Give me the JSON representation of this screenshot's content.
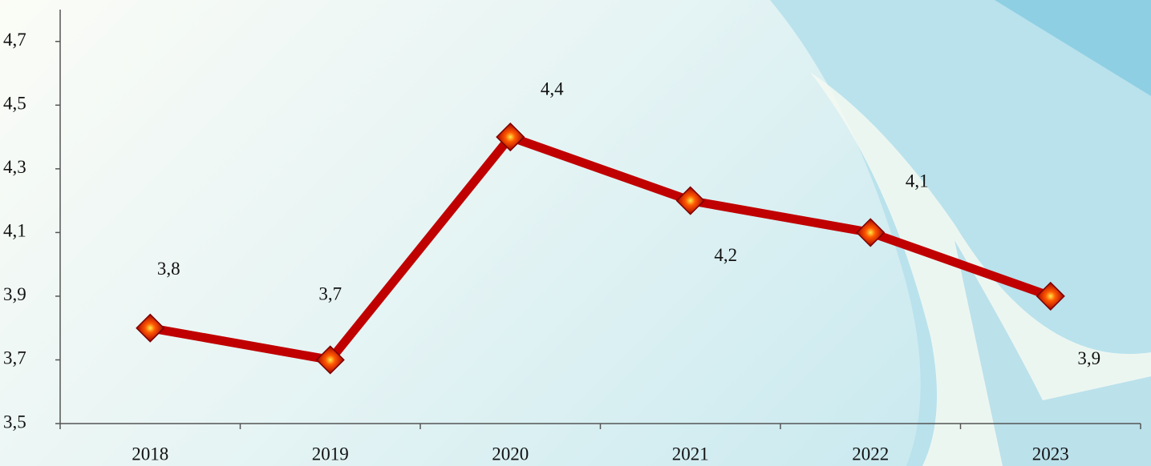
{
  "chart_data": {
    "type": "line",
    "categories": [
      "2018",
      "2019",
      "2020",
      "2021",
      "2022",
      "2023"
    ],
    "series": [
      {
        "color": "#c00000",
        "values": [
          3.8,
          3.7,
          4.4,
          4.2,
          4.1,
          3.9
        ],
        "value_labels": [
          "3,8",
          "3,7",
          "4,4",
          "4,2",
          "4,1",
          "3,9"
        ]
      }
    ],
    "ylim": [
      3.5,
      4.8
    ],
    "yticks": [
      {
        "value": 3.5,
        "label": "3,5"
      },
      {
        "value": 3.7,
        "label": "3,7"
      },
      {
        "value": 3.9,
        "label": "3,9"
      },
      {
        "value": 4.1,
        "label": "4,1"
      },
      {
        "value": 4.3,
        "label": "4,3"
      },
      {
        "value": 4.5,
        "label": "4,5"
      },
      {
        "value": 4.7,
        "label": "4,7"
      }
    ]
  }
}
